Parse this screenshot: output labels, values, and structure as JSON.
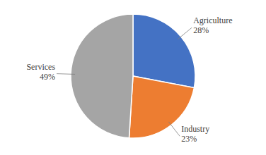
{
  "chart_data": {
    "type": "pie",
    "categories": [
      "Agriculture",
      "Industry",
      "Services"
    ],
    "values": [
      28,
      23,
      49
    ],
    "value_labels": [
      "28%",
      "23%",
      "49%"
    ],
    "colors": [
      "#4472c4",
      "#ed7d31",
      "#a5a5a5"
    ],
    "data_labels": true
  }
}
